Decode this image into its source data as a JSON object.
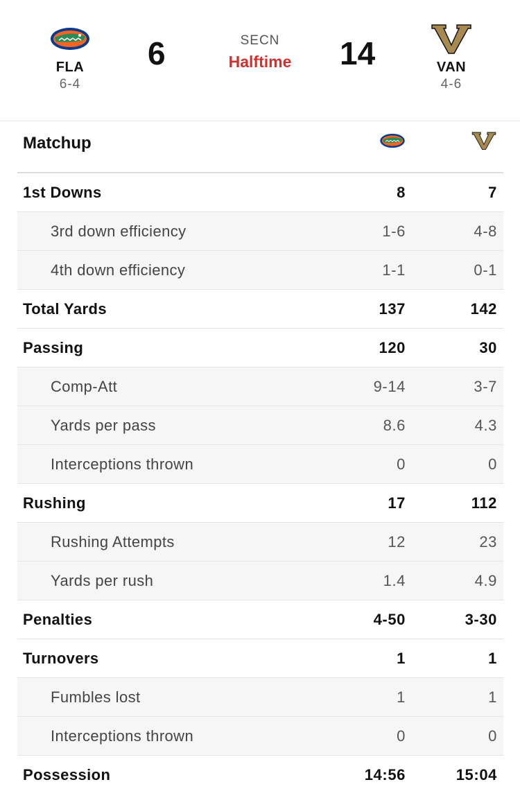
{
  "game": {
    "home": {
      "abbr": "FLA",
      "record": "6-4",
      "score": "6",
      "logo": "gators-logo",
      "logo_color": "#0a3a8c"
    },
    "away": {
      "abbr": "VAN",
      "record": "4-6",
      "score": "14",
      "logo": "vanderbilt-v-logo",
      "logo_color": "#a88a50"
    },
    "network": "SECN",
    "period": "Halftime"
  },
  "matchup": {
    "title": "Matchup",
    "rows": [
      {
        "label": "1st Downs",
        "home": "8",
        "away": "7",
        "level": "main"
      },
      {
        "label": "3rd down efficiency",
        "home": "1-6",
        "away": "4-8",
        "level": "sub"
      },
      {
        "label": "4th down efficiency",
        "home": "1-1",
        "away": "0-1",
        "level": "sub"
      },
      {
        "label": "Total Yards",
        "home": "137",
        "away": "142",
        "level": "main"
      },
      {
        "label": "Passing",
        "home": "120",
        "away": "30",
        "level": "main"
      },
      {
        "label": "Comp-Att",
        "home": "9-14",
        "away": "3-7",
        "level": "sub"
      },
      {
        "label": "Yards per pass",
        "home": "8.6",
        "away": "4.3",
        "level": "sub"
      },
      {
        "label": "Interceptions thrown",
        "home": "0",
        "away": "0",
        "level": "sub"
      },
      {
        "label": "Rushing",
        "home": "17",
        "away": "112",
        "level": "main"
      },
      {
        "label": "Rushing Attempts",
        "home": "12",
        "away": "23",
        "level": "sub"
      },
      {
        "label": "Yards per rush",
        "home": "1.4",
        "away": "4.9",
        "level": "sub"
      },
      {
        "label": "Penalties",
        "home": "4-50",
        "away": "3-30",
        "level": "main"
      },
      {
        "label": "Turnovers",
        "home": "1",
        "away": "1",
        "level": "main"
      },
      {
        "label": "Fumbles lost",
        "home": "1",
        "away": "1",
        "level": "sub"
      },
      {
        "label": "Interceptions thrown",
        "home": "0",
        "away": "0",
        "level": "sub"
      },
      {
        "label": "Possession",
        "home": "14:56",
        "away": "15:04",
        "level": "main"
      }
    ]
  }
}
